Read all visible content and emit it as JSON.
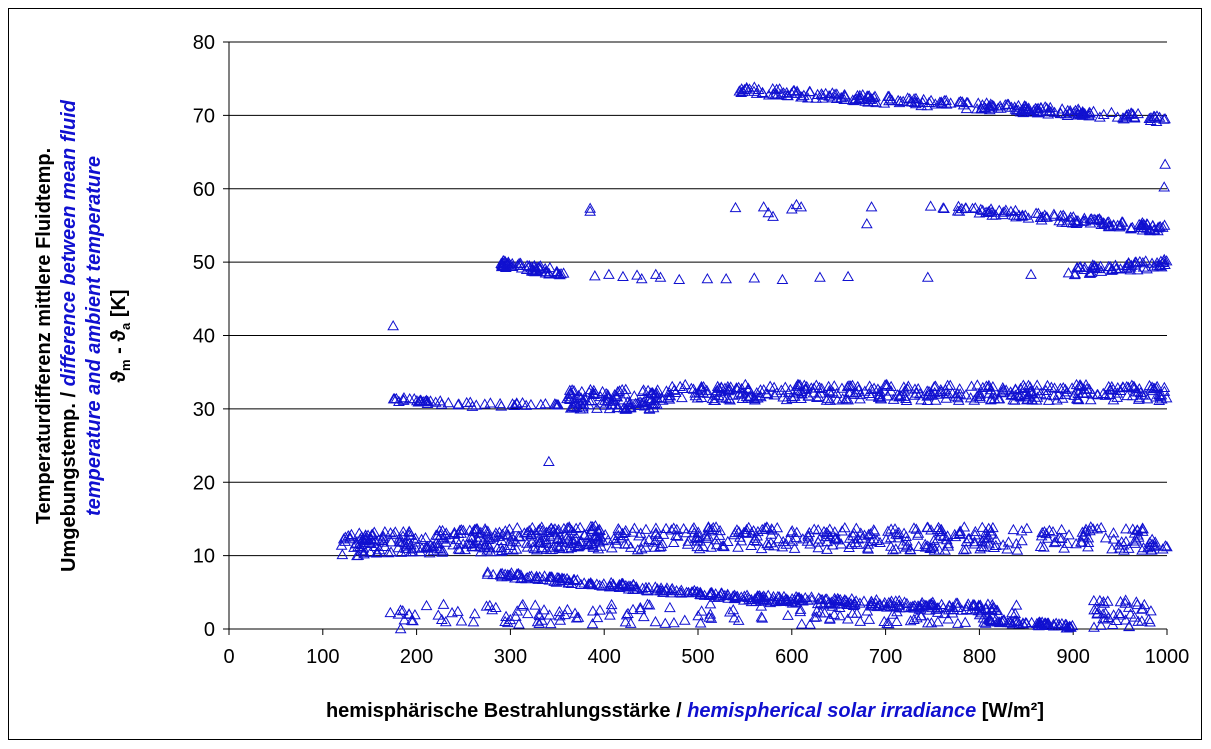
{
  "chart_data": {
    "type": "scatter",
    "marker": "open-triangle",
    "colors": {
      "marker": "#1010d0",
      "english_text": "#1010d0",
      "german_text": "#000000",
      "grid": "#000000"
    },
    "xlim": [
      0,
      1000
    ],
    "ylim": [
      0,
      80
    ],
    "x_ticks": [
      "0",
      "100",
      "200",
      "300",
      "400",
      "500",
      "600",
      "700",
      "800",
      "900",
      "1000"
    ],
    "y_ticks": [
      "0",
      "10",
      "20",
      "30",
      "40",
      "50",
      "60",
      "70",
      "80"
    ],
    "grid": "horizontal",
    "xlabel": {
      "german": "hemisphärische Bestrahlungsstärke / ",
      "english": "hemispherical solar irradiance",
      "unit": " [W/m²]"
    },
    "ylabel": {
      "line1_german": "Temperaturdifferenz mittlere Fluidtemp.",
      "line2_german": "Umgebungstemp. / ",
      "line2_english": "difference between mean fluid",
      "line3_english": "temperature and ambient temperature",
      "line4_symbol": "ϑ",
      "line4_sub_m": "m",
      "line4_mid": " - ϑ",
      "line4_sub_a": "a",
      "line4_unit": " [K]"
    },
    "clusters": [
      {
        "x": [
          540,
          1000
        ],
        "y": [
          73.5,
          69.5
        ],
        "jitter": 0.5,
        "count": 230
      },
      {
        "x": [
          760,
          1000
        ],
        "y": [
          57.5,
          54.5
        ],
        "jitter": 0.5,
        "count": 120
      },
      {
        "x": [
          290,
          360
        ],
        "y": [
          49.8,
          48.5
        ],
        "jitter": 0.5,
        "count": 60
      },
      {
        "x": [
          900,
          1000
        ],
        "y": [
          48.8,
          49.8
        ],
        "jitter": 0.6,
        "count": 60
      },
      {
        "x": [
          175,
          230
        ],
        "y": [
          31.3,
          30.8
        ],
        "jitter": 0.3,
        "count": 25
      },
      {
        "x": [
          230,
          360
        ],
        "y": [
          30.6,
          30.6
        ],
        "jitter": 0.3,
        "count": 25
      },
      {
        "x": [
          360,
          460
        ],
        "y": [
          31.3,
          31.3
        ],
        "jitter": 1.4,
        "count": 110
      },
      {
        "x": [
          460,
          1000
        ],
        "y": [
          32.2,
          32.2
        ],
        "jitter": 1.1,
        "count": 360
      },
      {
        "x": [
          120,
          400
        ],
        "y": [
          11.5,
          12.5
        ],
        "jitter": 1.6,
        "count": 300
      },
      {
        "x": [
          400,
          1000
        ],
        "y": [
          12.3,
          12.3
        ],
        "jitter": 1.6,
        "count": 340
      },
      {
        "x": [
          275,
          550
        ],
        "y": [
          7.6,
          4.2
        ],
        "jitter": 0.35,
        "count": 160
      },
      {
        "x": [
          550,
          820
        ],
        "y": [
          4.2,
          2.8
        ],
        "jitter": 0.5,
        "count": 170
      },
      {
        "x": [
          810,
          900
        ],
        "y": [
          1.2,
          0.3
        ],
        "jitter": 0.3,
        "count": 60
      },
      {
        "x": [
          180,
          840
        ],
        "y": [
          2.0,
          2.0
        ],
        "jitter": 1.4,
        "count": 150
      },
      {
        "x": [
          920,
          985
        ],
        "y": [
          2.2,
          2.2
        ],
        "jitter": 2.0,
        "count": 40
      }
    ],
    "points": [
      [
        175,
        41.3
      ],
      [
        341,
        22.8
      ],
      [
        385,
        57.3
      ],
      [
        385,
        56.9
      ],
      [
        540,
        57.4
      ],
      [
        570,
        57.5
      ],
      [
        575,
        56.7
      ],
      [
        580,
        56.2
      ],
      [
        600,
        57.2
      ],
      [
        605,
        57.8
      ],
      [
        610,
        57.5
      ],
      [
        680,
        55.2
      ],
      [
        685,
        57.5
      ],
      [
        748,
        57.6
      ],
      [
        997,
        60.2
      ],
      [
        998,
        63.3
      ],
      [
        172,
        2.2
      ],
      [
        183,
        0.0
      ],
      [
        390,
        48.1
      ],
      [
        405,
        48.3
      ],
      [
        420,
        48.0
      ],
      [
        440,
        47.7
      ],
      [
        460,
        47.9
      ],
      [
        480,
        47.6
      ],
      [
        510,
        47.7
      ],
      [
        530,
        47.7
      ],
      [
        560,
        47.8
      ],
      [
        590,
        47.6
      ],
      [
        630,
        47.9
      ],
      [
        660,
        48.0
      ],
      [
        745,
        47.9
      ],
      [
        855,
        48.3
      ],
      [
        895,
        48.5
      ],
      [
        435,
        48.2
      ],
      [
        455,
        48.3
      ]
    ]
  }
}
